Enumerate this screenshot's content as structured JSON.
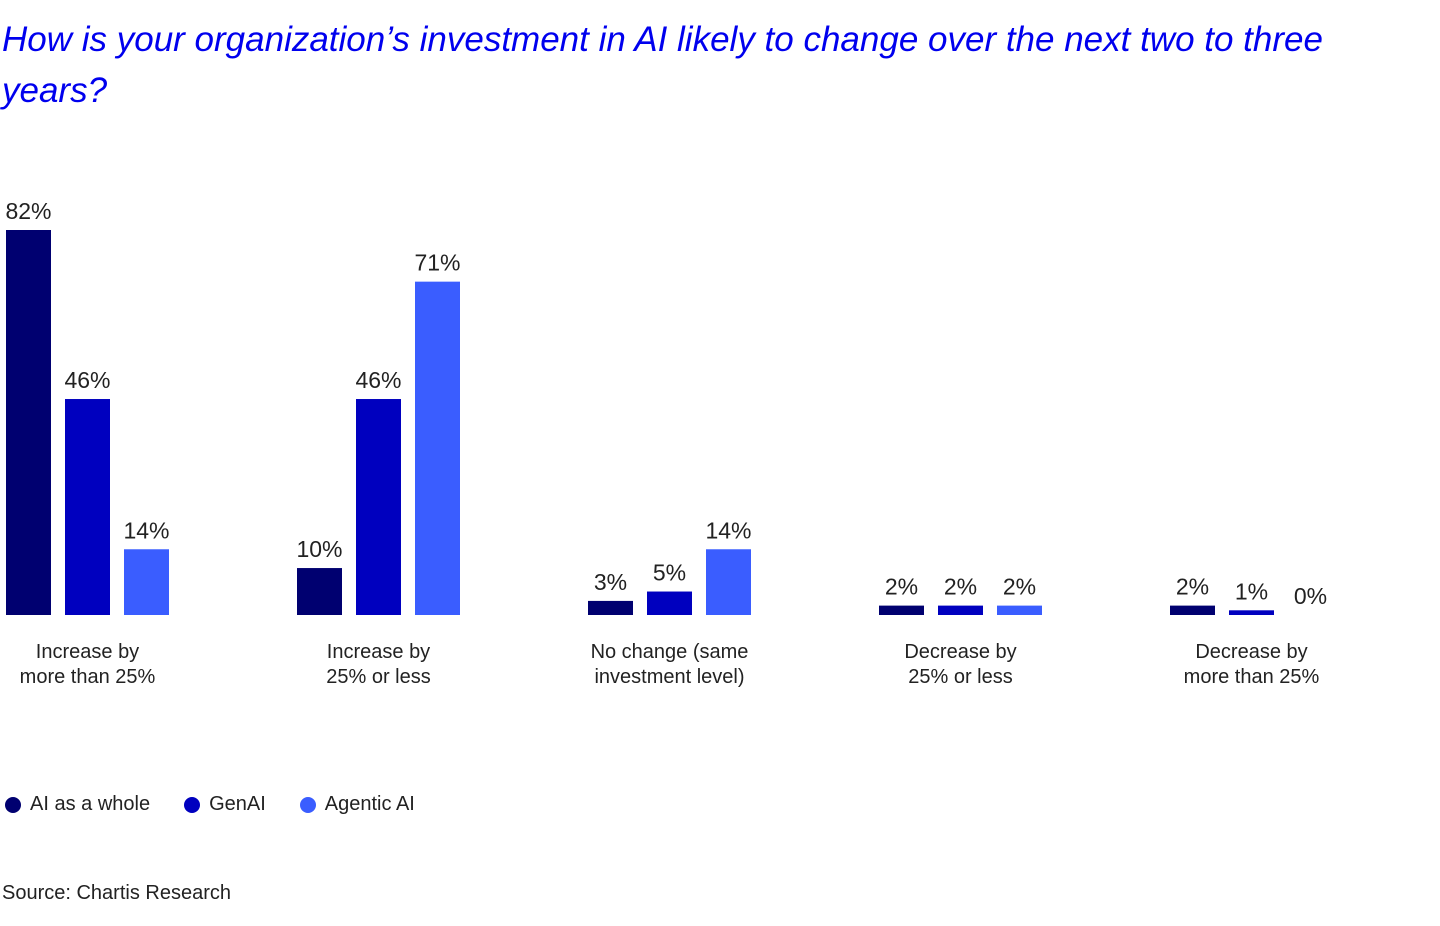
{
  "chart_data": {
    "type": "bar",
    "title": "How is your organization’s investment in AI likely to change over the next two to three years?",
    "categories": [
      [
        "Increase by",
        "more than 25%"
      ],
      [
        "Increase by",
        "25% or less"
      ],
      [
        "No change (same",
        "investment level)"
      ],
      [
        "Decrease by",
        "25% or less"
      ],
      [
        "Decrease by",
        "more than 25%"
      ]
    ],
    "series": [
      {
        "name": "AI as a whole",
        "color": "#000070",
        "values": [
          82,
          10,
          3,
          2,
          2
        ]
      },
      {
        "name": "GenAI",
        "color": "#0000bf",
        "values": [
          46,
          46,
          5,
          2,
          1
        ]
      },
      {
        "name": "Agentic AI",
        "color": "#3a5dff",
        "values": [
          14,
          71,
          14,
          2,
          0
        ]
      }
    ],
    "value_suffix": "%",
    "ylim": [
      0,
      82
    ],
    "grid": false,
    "legend_placement": "bottom-left",
    "source": "Source: Chartis Research"
  }
}
